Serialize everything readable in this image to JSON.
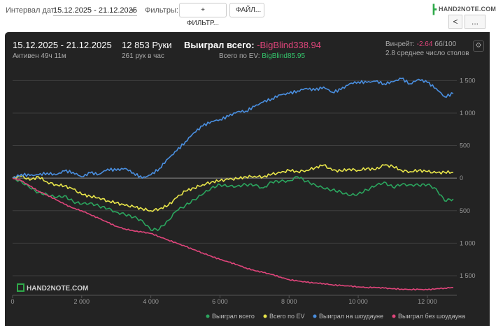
{
  "toolbar": {
    "date_label": "Интервал дат:",
    "date_range": "15.12.2025 - 21.12.2025",
    "filters_label": "Фильтры:",
    "filter_button": "+ ФИЛЬТР...",
    "file_button": "ФАЙЛ...",
    "logo_text": "HAND2NOTE.COM",
    "back_glyph": "<",
    "more_glyph": "..."
  },
  "header": {
    "date_range": "15.12.2025 - 21.12.2025",
    "active_time": "Активен 49ч 11м",
    "hands": "12 853 Руки",
    "hands_per_hour": "261 рук в час",
    "won_label": "Выиграл всего:",
    "won_value": "-BigBlind338.94",
    "ev_label": "Всего по EV:",
    "ev_value": "BigBlind85.95",
    "winrate_label": "Винрейт:",
    "winrate_value": "-2.64",
    "winrate_unit": "бб/100",
    "avg_tables": "2.8 среднее число столов",
    "watermark": "HAND2NOTE.COM"
  },
  "colors": {
    "panel_bg": "#232323",
    "total": "#2ba55e",
    "ev": "#e8e54a",
    "showdown": "#4a8fe0",
    "non_showdown": "#e0457b",
    "grid": "#3e3e3e",
    "zero_line": "#8a8a8a"
  },
  "chart_data": {
    "type": "line",
    "xlim": [
      0,
      12853
    ],
    "ylim": [
      -1800,
      1600
    ],
    "x_ticks": [
      0,
      2000,
      4000,
      6000,
      8000,
      10000,
      12000
    ],
    "x_tick_labels": [
      "0",
      "2 000",
      "4 000",
      "6 000",
      "8 000",
      "10 000",
      "12 000"
    ],
    "y_ticks": [
      1500,
      1000,
      500,
      0,
      -500,
      -1000,
      -1500
    ],
    "y_tick_labels": [
      "1 500",
      "1 000",
      "500",
      "0",
      "500",
      "1 000",
      "1 500"
    ],
    "grid": true,
    "legend_position": "bottom-right",
    "x": [
      0,
      250,
      500,
      750,
      1000,
      1250,
      1500,
      1750,
      2000,
      2250,
      2500,
      2750,
      3000,
      3250,
      3500,
      3750,
      4000,
      4250,
      4500,
      4750,
      5000,
      5250,
      5500,
      5750,
      6000,
      6250,
      6500,
      6750,
      7000,
      7250,
      7500,
      7750,
      8000,
      8250,
      8500,
      8750,
      9000,
      9250,
      9500,
      9750,
      10000,
      10250,
      10500,
      10750,
      11000,
      11250,
      11500,
      11750,
      12000,
      12250,
      12500,
      12750
    ],
    "series": [
      {
        "name": "Выиграл всего",
        "color": "#2ba55e",
        "values": [
          0,
          -50,
          -150,
          -220,
          -250,
          -300,
          -270,
          -360,
          -400,
          -380,
          -430,
          -470,
          -520,
          -560,
          -600,
          -650,
          -800,
          -780,
          -650,
          -500,
          -420,
          -330,
          -250,
          -150,
          -100,
          -130,
          -120,
          -100,
          -110,
          -150,
          -60,
          -50,
          -40,
          20,
          -50,
          -100,
          -160,
          -180,
          -210,
          -270,
          -240,
          -180,
          -120,
          -60,
          -140,
          -100,
          -100,
          -110,
          -100,
          -160,
          -350,
          -320
        ]
      },
      {
        "name": "Всего по EV",
        "color": "#e8e54a",
        "values": [
          0,
          30,
          -30,
          20,
          -60,
          -100,
          -120,
          -170,
          -250,
          -280,
          -300,
          -350,
          -380,
          -420,
          -440,
          -470,
          -500,
          -470,
          -420,
          -300,
          -200,
          -150,
          -100,
          -60,
          -40,
          -20,
          -10,
          20,
          30,
          20,
          60,
          80,
          120,
          100,
          120,
          160,
          200,
          120,
          110,
          140,
          120,
          150,
          130,
          200,
          180,
          120,
          100,
          120,
          100,
          80,
          90,
          90
        ]
      },
      {
        "name": "Выиграл на шоудауне",
        "color": "#4a8fe0",
        "values": [
          0,
          60,
          40,
          50,
          80,
          50,
          110,
          90,
          20,
          80,
          60,
          140,
          120,
          150,
          80,
          0,
          50,
          150,
          300,
          420,
          560,
          700,
          800,
          870,
          900,
          950,
          1020,
          1030,
          1100,
          1170,
          1220,
          1280,
          1300,
          1340,
          1380,
          1350,
          1400,
          1320,
          1360,
          1450,
          1480,
          1470,
          1490,
          1450,
          1480,
          1530,
          1450,
          1520,
          1470,
          1380,
          1250,
          1300
        ]
      },
      {
        "name": "Выиграл без шоудауна",
        "color": "#e0457b",
        "values": [
          0,
          -40,
          -120,
          -200,
          -260,
          -330,
          -400,
          -460,
          -500,
          -560,
          -620,
          -680,
          -740,
          -780,
          -810,
          -830,
          -850,
          -900,
          -950,
          -1000,
          -1050,
          -1100,
          -1150,
          -1200,
          -1250,
          -1290,
          -1330,
          -1380,
          -1420,
          -1450,
          -1480,
          -1520,
          -1560,
          -1580,
          -1600,
          -1610,
          -1620,
          -1640,
          -1650,
          -1660,
          -1670,
          -1680,
          -1680,
          -1690,
          -1700,
          -1705,
          -1710,
          -1710,
          -1715,
          -1700,
          -1690,
          -1680
        ]
      }
    ]
  }
}
